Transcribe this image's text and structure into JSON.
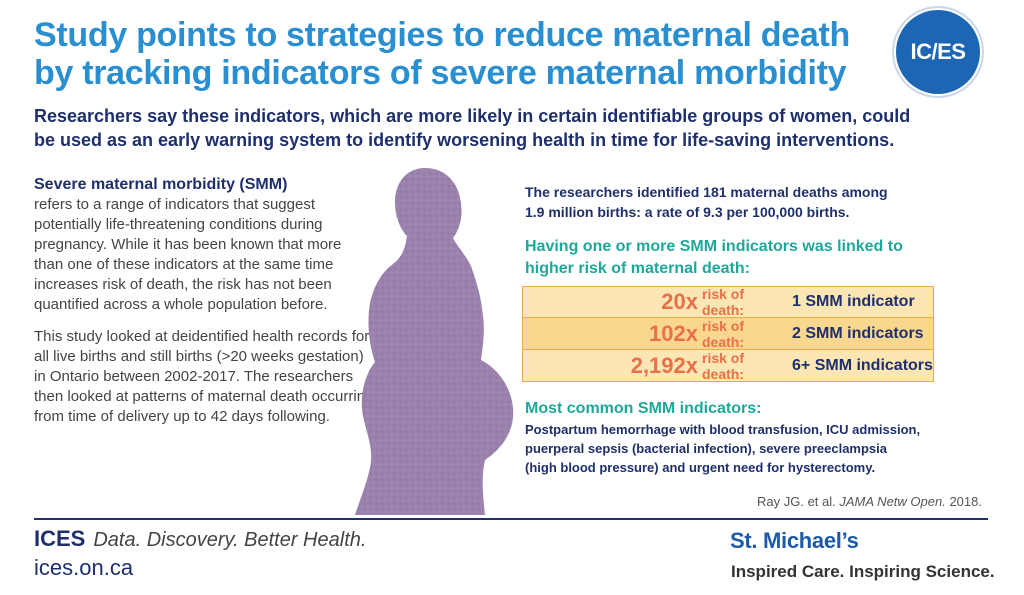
{
  "header": {
    "title_lines": [
      "Study points to strategies to reduce maternal death",
      "by tracking indicators of severe maternal morbidity"
    ],
    "logo_text": "IC/ES",
    "subtitle_lines": [
      "Researchers say these indicators, which are more likely in certain identifiable groups of women, could",
      "be used as an early warning system to identify worsening health in time for life-saving interventions."
    ]
  },
  "left": {
    "smm_heading": "Severe maternal morbidity (SMM)",
    "paragraph1": "refers to a range of indicators that suggest potentially life-threatening conditions during pregnancy. While it has been known that more than one of these indicators at the same time increases risk of death, the risk has not been quantified across a whole population before.",
    "paragraph2": "This study looked at deidentified health records for all live births and still births (>20 weeks gestation) in Ontario between 2002-2017. The researchers then looked at patterns of maternal death occurring from time of delivery up to 42 days following."
  },
  "right": {
    "stats_lines": [
      "The researchers identified 181 maternal deaths among",
      "1.9 million births: a rate of 9.3 per 100,000 births."
    ],
    "linked_lines": [
      "Having one or more SMM indicators was linked to",
      "higher risk of maternal death:"
    ],
    "risk_rows": [
      {
        "multiplier": "20x",
        "label": "risk of death:",
        "count": "1 SMM indicator"
      },
      {
        "multiplier": "102x",
        "label": "risk of death:",
        "count": "2 SMM indicators"
      },
      {
        "multiplier": "2,192x",
        "label": "risk of death:",
        "count": "6+ SMM indicators"
      }
    ],
    "common_heading": "Most common SMM indicators:",
    "common_lines": [
      "Postpartum hemorrhage with blood transfusion, ICU admission,",
      "puerperal sepsis (bacterial infection), severe preeclampsia",
      "(high blood pressure) and urgent need for hysterectomy."
    ]
  },
  "citation": {
    "authors": "Ray JG. et al.",
    "journal": "JAMA Netw Open.",
    "year": "2018."
  },
  "footer": {
    "ices_name": "ICES",
    "ices_tagline": "Data. Discovery. Better Health.",
    "ices_url": "ices.on.ca",
    "stm_name": "St. Michael’s",
    "stm_tagline": "Inspired Care. Inspiring Science."
  },
  "colors": {
    "title_blue": "#2a8fd1",
    "navy": "#1e2f6b",
    "teal": "#1ea89a",
    "orange": "#e8704a",
    "silhouette_purple": "#9b82ad",
    "row_light": "#fbe6b4",
    "row_dark": "#f9d78e"
  }
}
